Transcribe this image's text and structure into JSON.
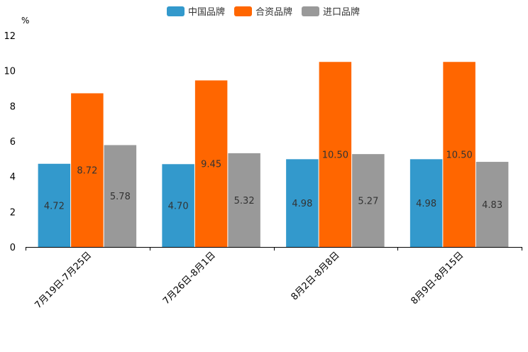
{
  "chart_data": {
    "type": "bar",
    "unit_label": "%",
    "categories": [
      "7月19日-7月25日",
      "7月26日-8月1日",
      "8月2日-8月8日",
      "8月9日-8月15日"
    ],
    "series": [
      {
        "name": "中国品牌",
        "color": "#3399cc",
        "values": [
          4.72,
          4.7,
          4.98,
          4.98
        ]
      },
      {
        "name": "合资品牌",
        "color": "#ff6600",
        "values": [
          8.72,
          9.45,
          10.5,
          10.5
        ]
      },
      {
        "name": "进口品牌",
        "color": "#999999",
        "values": [
          5.78,
          5.32,
          5.27,
          4.83
        ]
      }
    ],
    "data_labels": [
      [
        "4.72",
        "4.70",
        "4.98",
        "4.98"
      ],
      [
        "8.72",
        "9.45",
        "10.50",
        "10.50"
      ],
      [
        "5.78",
        "5.32",
        "5.27",
        "4.83"
      ]
    ],
    "yticks": [
      "0",
      "2",
      "4",
      "6",
      "8",
      "10",
      "12"
    ],
    "ylim": [
      0,
      12
    ],
    "legend_position": "top-center",
    "grid": false
  }
}
